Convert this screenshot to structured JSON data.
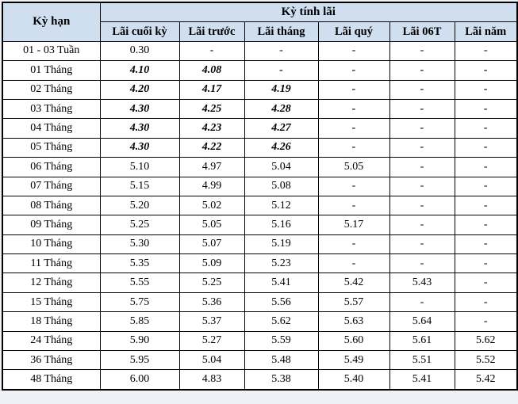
{
  "colors": {
    "header_bg": "#cfdff0",
    "grid_border": "#000000",
    "text": "#000000",
    "page_bg": "#eef1f6",
    "row_bg": "#ffffff"
  },
  "chart_data": {
    "type": "table",
    "term_header": "Kỳ hạn",
    "group_header": "Kỳ tính lãi",
    "columns": [
      "Lãi cuối kỳ",
      "Lãi trước",
      "Lãi tháng",
      "Lãi quý",
      "Lãi 06T",
      "Lãi năm"
    ],
    "rows": [
      {
        "term": "01 - 03 Tuần",
        "values": [
          "0.30",
          "-",
          "-",
          "-",
          "-",
          "-"
        ],
        "emphasized": false
      },
      {
        "term": "01 Tháng",
        "values": [
          "4.10",
          "4.08",
          "-",
          "-",
          "-",
          "-"
        ],
        "emphasized": true
      },
      {
        "term": "02 Tháng",
        "values": [
          "4.20",
          "4.17",
          "4.19",
          "-",
          "-",
          "-"
        ],
        "emphasized": true
      },
      {
        "term": "03 Tháng",
        "values": [
          "4.30",
          "4.25",
          "4.28",
          "-",
          "-",
          "-"
        ],
        "emphasized": true
      },
      {
        "term": "04 Tháng",
        "values": [
          "4.30",
          "4.23",
          "4.27",
          "-",
          "-",
          "-"
        ],
        "emphasized": true
      },
      {
        "term": "05 Tháng",
        "values": [
          "4.30",
          "4.22",
          "4.26",
          "-",
          "-",
          "-"
        ],
        "emphasized": true
      },
      {
        "term": "06 Tháng",
        "values": [
          "5.10",
          "4.97",
          "5.04",
          "5.05",
          "-",
          "-"
        ],
        "emphasized": false
      },
      {
        "term": "07 Tháng",
        "values": [
          "5.15",
          "4.99",
          "5.08",
          "-",
          "-",
          "-"
        ],
        "emphasized": false
      },
      {
        "term": "08 Tháng",
        "values": [
          "5.20",
          "5.02",
          "5.12",
          "-",
          "-",
          "-"
        ],
        "emphasized": false
      },
      {
        "term": "09 Tháng",
        "values": [
          "5.25",
          "5.05",
          "5.16",
          "5.17",
          "-",
          "-"
        ],
        "emphasized": false
      },
      {
        "term": "10 Tháng",
        "values": [
          "5.30",
          "5.07",
          "5.19",
          "-",
          "-",
          "-"
        ],
        "emphasized": false
      },
      {
        "term": "11 Tháng",
        "values": [
          "5.35",
          "5.09",
          "5.23",
          "-",
          "-",
          "-"
        ],
        "emphasized": false
      },
      {
        "term": "12 Tháng",
        "values": [
          "5.55",
          "5.25",
          "5.41",
          "5.42",
          "5.43",
          "-"
        ],
        "emphasized": false
      },
      {
        "term": "15 Tháng",
        "values": [
          "5.75",
          "5.36",
          "5.56",
          "5.57",
          "-",
          "-"
        ],
        "emphasized": false
      },
      {
        "term": "18 Tháng",
        "values": [
          "5.85",
          "5.37",
          "5.62",
          "5.63",
          "5.64",
          "-"
        ],
        "emphasized": false
      },
      {
        "term": "24 Tháng",
        "values": [
          "5.90",
          "5.27",
          "5.59",
          "5.60",
          "5.61",
          "5.62"
        ],
        "emphasized": false
      },
      {
        "term": "36 Tháng",
        "values": [
          "5.95",
          "5.04",
          "5.48",
          "5.49",
          "5.51",
          "5.52"
        ],
        "emphasized": false
      },
      {
        "term": "48 Tháng",
        "values": [
          "6.00",
          "4.83",
          "5.38",
          "5.40",
          "5.41",
          "5.42"
        ],
        "emphasized": false
      }
    ]
  }
}
